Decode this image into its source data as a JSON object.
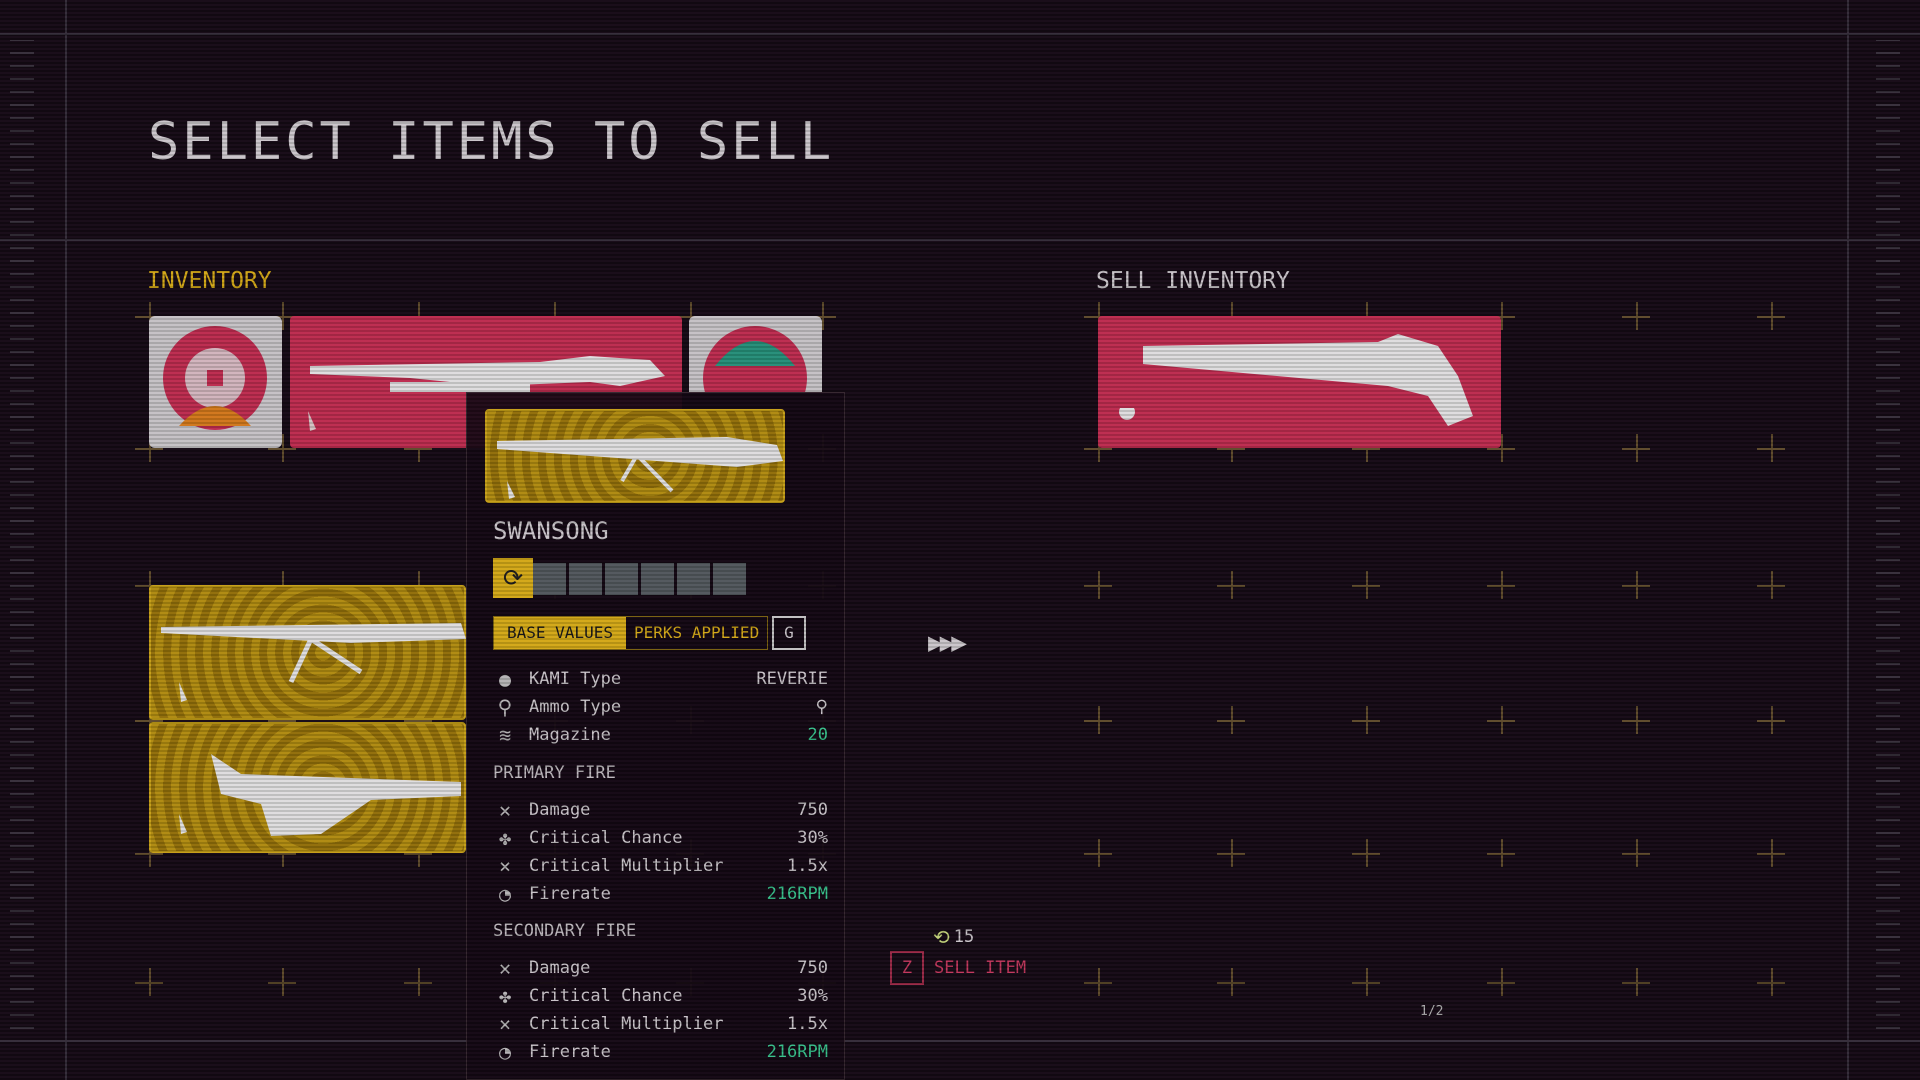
{
  "title": "SELECT ITEMS TO SELL",
  "inventory": {
    "label": "INVENTORY",
    "items": [
      {
        "name": "kami-red",
        "color": "#d8335a"
      },
      {
        "name": "weapon-red",
        "color": "#d8335a"
      },
      {
        "name": "kami-teal",
        "color": "#2aa58a"
      },
      {
        "name": "weapon-gold-swansong",
        "color": "#c9a012"
      },
      {
        "name": "weapon-gold-rifle",
        "color": "#c9a012"
      }
    ]
  },
  "sell_inventory": {
    "label": "SELL INVENTORY",
    "items": [
      {
        "name": "revolver",
        "color": "#d8335a"
      }
    ]
  },
  "tooltip": {
    "name": "SWANSONG",
    "perk_slots_total": 6,
    "perk_slots_filled": 0,
    "tabs": {
      "base": "BASE VALUES",
      "perks": "PERKS APPLIED",
      "key": "G",
      "active": "base"
    },
    "info": [
      {
        "icon": "kami-icon",
        "label": "KAMI Type",
        "value": "REVERIE"
      },
      {
        "icon": "ammo-icon",
        "label": "Ammo Type",
        "value": "",
        "value_icon": "ammo-icon"
      },
      {
        "icon": "magazine-icon",
        "label": "Magazine",
        "value": "20",
        "green": true
      }
    ],
    "primary": {
      "label": "PRIMARY FIRE",
      "stats": [
        {
          "icon": "damage-icon",
          "label": "Damage",
          "value": "750"
        },
        {
          "icon": "clover-icon",
          "label": "Critical Chance",
          "value": "30%"
        },
        {
          "icon": "crit-multiplier-icon",
          "label": "Critical Multiplier",
          "value": "1.5x"
        },
        {
          "icon": "firerate-icon",
          "label": "Firerate",
          "value": "216RPM",
          "green": true
        }
      ]
    },
    "secondary": {
      "label": "SECONDARY FIRE",
      "stats": [
        {
          "icon": "damage-icon",
          "label": "Damage",
          "value": "750"
        },
        {
          "icon": "clover-icon",
          "label": "Critical Chance",
          "value": "30%"
        },
        {
          "icon": "crit-multiplier-icon",
          "label": "Critical Multiplier",
          "value": "1.5x"
        },
        {
          "icon": "firerate-icon",
          "label": "Firerate",
          "value": "216RPM",
          "green": true
        }
      ]
    }
  },
  "sell": {
    "key": "Z",
    "label": "SELL ITEM",
    "price": "15"
  },
  "page": "1/2",
  "colors": {
    "accent": "#f2c21a",
    "red": "#d8335a",
    "green": "#3fe0a0"
  }
}
